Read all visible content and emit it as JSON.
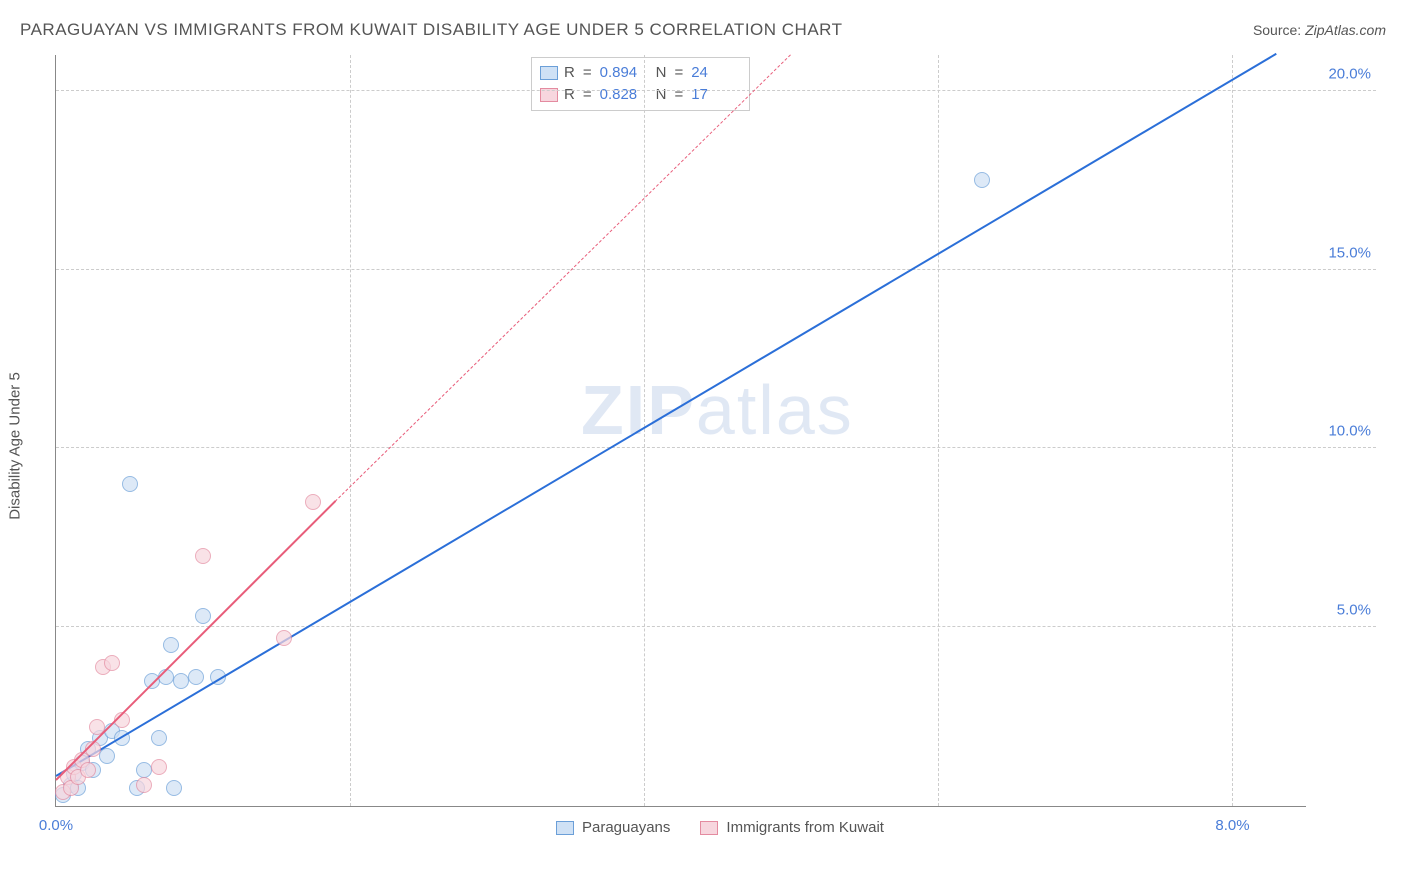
{
  "header": {
    "title": "PARAGUAYAN VS IMMIGRANTS FROM KUWAIT DISABILITY AGE UNDER 5 CORRELATION CHART",
    "source_label": "Source:",
    "source_value": "ZipAtlas.com"
  },
  "chart": {
    "type": "scatter",
    "ylabel": "Disability Age Under 5",
    "watermark": {
      "zip": "ZIP",
      "atlas": "atlas"
    },
    "xlim": [
      0,
      8.5
    ],
    "ylim": [
      0,
      21
    ],
    "y_ticks": [
      {
        "value": 5,
        "label": "5.0%"
      },
      {
        "value": 10,
        "label": "10.0%"
      },
      {
        "value": 15,
        "label": "15.0%"
      },
      {
        "value": 20,
        "label": "20.0%"
      }
    ],
    "x_ticks": [
      {
        "value": 0,
        "label": "0.0%"
      },
      {
        "value": 8,
        "label": "8.0%"
      }
    ],
    "x_grid": [
      2,
      4,
      6,
      8
    ],
    "series": [
      {
        "key": "paraguayans",
        "label": "Paraguayans",
        "marker_fill": "#cfe1f5",
        "marker_stroke": "#6b9fd8",
        "line_color": "#2b6fd8",
        "R": "0.894",
        "N": "24",
        "trend": {
          "x0": 0,
          "y0": 0.8,
          "x1": 8.3,
          "y1": 21,
          "dash_from_x": 8.3
        },
        "points": [
          {
            "x": 0.05,
            "y": 0.3
          },
          {
            "x": 0.1,
            "y": 0.6
          },
          {
            "x": 0.12,
            "y": 0.9
          },
          {
            "x": 0.15,
            "y": 0.5
          },
          {
            "x": 0.18,
            "y": 1.2
          },
          {
            "x": 0.22,
            "y": 1.6
          },
          {
            "x": 0.25,
            "y": 1.0
          },
          {
            "x": 0.3,
            "y": 1.9
          },
          {
            "x": 0.35,
            "y": 1.4
          },
          {
            "x": 0.38,
            "y": 2.1
          },
          {
            "x": 0.45,
            "y": 1.9
          },
          {
            "x": 0.55,
            "y": 0.5
          },
          {
            "x": 0.6,
            "y": 1.0
          },
          {
            "x": 0.65,
            "y": 3.5
          },
          {
            "x": 0.7,
            "y": 1.9
          },
          {
            "x": 0.75,
            "y": 3.6
          },
          {
            "x": 0.78,
            "y": 4.5
          },
          {
            "x": 0.85,
            "y": 3.5
          },
          {
            "x": 0.95,
            "y": 3.6
          },
          {
            "x": 1.0,
            "y": 5.3
          },
          {
            "x": 1.1,
            "y": 3.6
          },
          {
            "x": 0.5,
            "y": 9.0
          },
          {
            "x": 0.8,
            "y": 0.5
          },
          {
            "x": 6.3,
            "y": 17.5
          }
        ]
      },
      {
        "key": "kuwait",
        "label": "Immigrants from Kuwait",
        "marker_fill": "#f7d6de",
        "marker_stroke": "#e48ba0",
        "line_color": "#e85d7a",
        "R": "0.828",
        "N": "17",
        "trend": {
          "x0": 0,
          "y0": 0.7,
          "x1": 1.9,
          "y1": 8.5,
          "dash_from_x": 1.9,
          "dash_to_x": 5.0,
          "dash_to_y": 21
        },
        "points": [
          {
            "x": 0.05,
            "y": 0.4
          },
          {
            "x": 0.08,
            "y": 0.8
          },
          {
            "x": 0.1,
            "y": 0.5
          },
          {
            "x": 0.12,
            "y": 1.1
          },
          {
            "x": 0.15,
            "y": 0.8
          },
          {
            "x": 0.18,
            "y": 1.3
          },
          {
            "x": 0.22,
            "y": 1.0
          },
          {
            "x": 0.25,
            "y": 1.6
          },
          {
            "x": 0.28,
            "y": 2.2
          },
          {
            "x": 0.32,
            "y": 3.9
          },
          {
            "x": 0.38,
            "y": 4.0
          },
          {
            "x": 0.45,
            "y": 2.4
          },
          {
            "x": 0.6,
            "y": 0.6
          },
          {
            "x": 0.7,
            "y": 1.1
          },
          {
            "x": 1.0,
            "y": 7.0
          },
          {
            "x": 1.55,
            "y": 4.7
          },
          {
            "x": 1.75,
            "y": 8.5
          }
        ]
      }
    ],
    "legend_top": {
      "R_label": "R",
      "N_label": "N",
      "eq": "="
    }
  }
}
